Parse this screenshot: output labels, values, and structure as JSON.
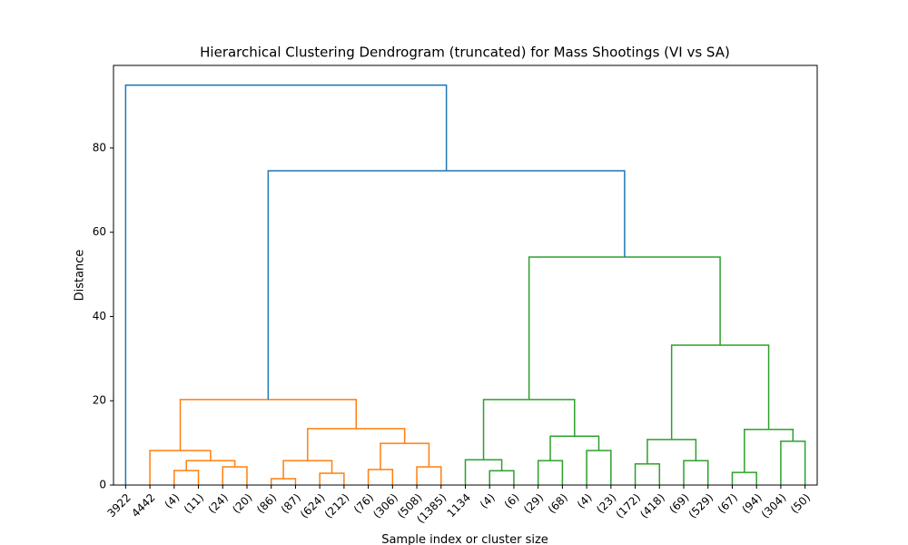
{
  "chart_data": {
    "type": "dendrogram",
    "title": "Hierarchical Clustering Dendrogram (truncated) for Mass Shootings (VI vs SA)",
    "x_label": "Sample index or cluster size",
    "y_label": "Distance",
    "ylim": [
      0,
      99.6
    ],
    "yticks": [
      0,
      20,
      40,
      60,
      80
    ],
    "tree": {
      "height": 94.9,
      "color": "#1f77b4",
      "children": [
        {
          "label": "3922"
        },
        {
          "height": 74.6,
          "color": "#1f77b4",
          "children": [
            {
              "height": 20.3,
              "color": "#ff7f0e",
              "children": [
                {
                  "height": 8.2,
                  "color": "#ff7f0e",
                  "children": [
                    {
                      "label": "4442"
                    },
                    {
                      "height": 5.8,
                      "color": "#ff7f0e",
                      "children": [
                        {
                          "height": 3.45,
                          "color": "#ff7f0e",
                          "children": [
                            {
                              "label": "(4)"
                            },
                            {
                              "label": "(11)"
                            }
                          ]
                        },
                        {
                          "height": 4.3,
                          "color": "#ff7f0e",
                          "children": [
                            {
                              "label": "(24)"
                            },
                            {
                              "label": "(20)"
                            }
                          ]
                        }
                      ]
                    }
                  ]
                },
                {
                  "height": 13.4,
                  "color": "#ff7f0e",
                  "children": [
                    {
                      "height": 5.8,
                      "color": "#ff7f0e",
                      "children": [
                        {
                          "height": 1.5,
                          "color": "#ff7f0e",
                          "children": [
                            {
                              "label": "(86)"
                            },
                            {
                              "label": "(87)"
                            }
                          ]
                        },
                        {
                          "height": 2.8,
                          "color": "#ff7f0e",
                          "children": [
                            {
                              "label": "(624)"
                            },
                            {
                              "label": "(212)"
                            }
                          ]
                        }
                      ]
                    },
                    {
                      "height": 9.9,
                      "color": "#ff7f0e",
                      "children": [
                        {
                          "height": 3.7,
                          "color": "#ff7f0e",
                          "children": [
                            {
                              "label": "(76)"
                            },
                            {
                              "label": "(306)"
                            }
                          ]
                        },
                        {
                          "height": 4.3,
                          "color": "#ff7f0e",
                          "children": [
                            {
                              "label": "(508)"
                            },
                            {
                              "label": "(1385)"
                            }
                          ]
                        }
                      ]
                    }
                  ]
                }
              ]
            },
            {
              "height": 54.1,
              "color": "#2ca02c",
              "children": [
                {
                  "height": 20.3,
                  "color": "#2ca02c",
                  "children": [
                    {
                      "height": 6.0,
                      "color": "#2ca02c",
                      "children": [
                        {
                          "label": "1134"
                        },
                        {
                          "height": 3.4,
                          "color": "#2ca02c",
                          "children": [
                            {
                              "label": "(4)"
                            },
                            {
                              "label": "(6)"
                            }
                          ]
                        }
                      ]
                    },
                    {
                      "height": 11.6,
                      "color": "#2ca02c",
                      "children": [
                        {
                          "height": 5.8,
                          "color": "#2ca02c",
                          "children": [
                            {
                              "label": "(29)"
                            },
                            {
                              "label": "(68)"
                            }
                          ]
                        },
                        {
                          "height": 8.2,
                          "color": "#2ca02c",
                          "children": [
                            {
                              "label": "(4)"
                            },
                            {
                              "label": "(23)"
                            }
                          ]
                        }
                      ]
                    }
                  ]
                },
                {
                  "height": 33.2,
                  "color": "#2ca02c",
                  "children": [
                    {
                      "height": 10.8,
                      "color": "#2ca02c",
                      "children": [
                        {
                          "height": 5.0,
                          "color": "#2ca02c",
                          "children": [
                            {
                              "label": "(172)"
                            },
                            {
                              "label": "(418)"
                            }
                          ]
                        },
                        {
                          "height": 5.8,
                          "color": "#2ca02c",
                          "children": [
                            {
                              "label": "(69)"
                            },
                            {
                              "label": "(529)"
                            }
                          ]
                        }
                      ]
                    },
                    {
                      "height": 13.2,
                      "color": "#2ca02c",
                      "children": [
                        {
                          "height": 3.0,
                          "color": "#2ca02c",
                          "children": [
                            {
                              "label": "(67)"
                            },
                            {
                              "label": "(94)"
                            }
                          ]
                        },
                        {
                          "height": 10.4,
                          "color": "#2ca02c",
                          "children": [
                            {
                              "label": "(304)"
                            },
                            {
                              "label": "(50)"
                            }
                          ]
                        }
                      ]
                    }
                  ]
                }
              ]
            }
          ]
        }
      ]
    }
  }
}
